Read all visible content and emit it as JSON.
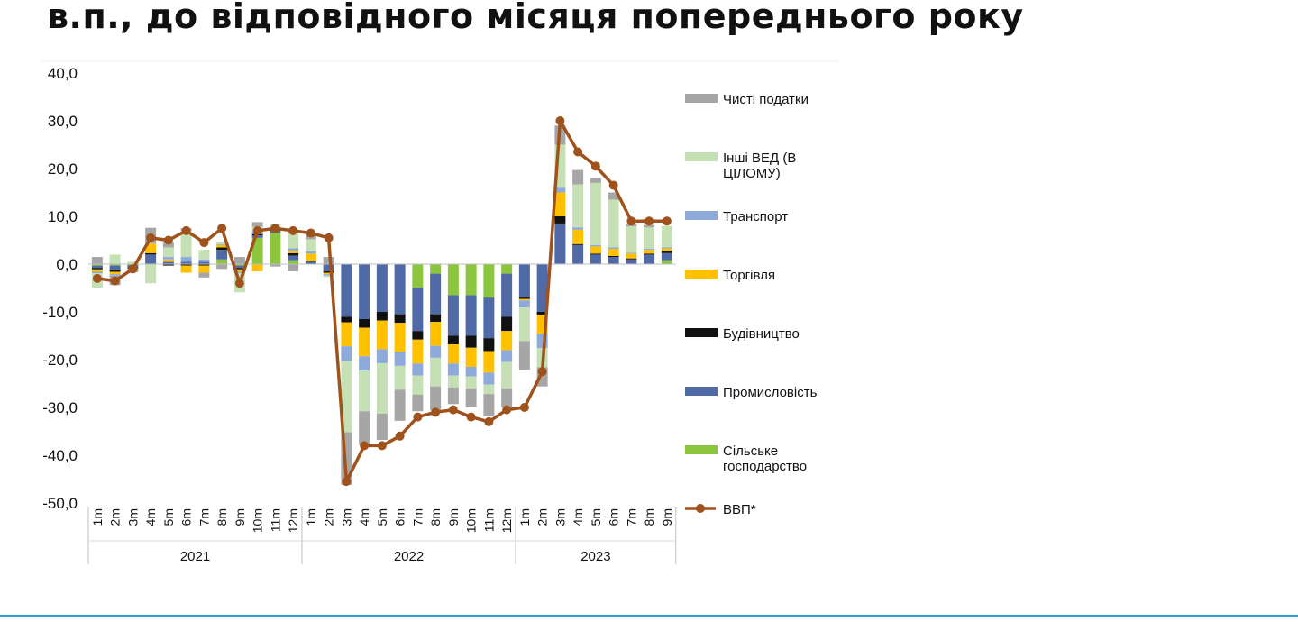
{
  "page": {
    "title_line": "в.п., до відповідного місяця попереднього року"
  },
  "chart_data": {
    "type": "bar",
    "stacked": true,
    "title": "в.п., до відповідного місяця попереднього року",
    "xlabel": "",
    "ylabel": "",
    "ylim": [
      -50,
      40
    ],
    "yticks": [
      "40,0",
      "30,0",
      "20,0",
      "10,0",
      "0,0",
      "-10,0",
      "-20,0",
      "-30,0",
      "-40,0",
      "-50,0"
    ],
    "ytick_values": [
      40,
      30,
      20,
      10,
      0,
      -10,
      -20,
      -30,
      -40,
      -50
    ],
    "grid": false,
    "legend_position": "right",
    "categories": [
      "1m",
      "2m",
      "3m",
      "4m",
      "5m",
      "6m",
      "7m",
      "8m",
      "9m",
      "10m",
      "11m",
      "12m",
      "1m",
      "2m",
      "3m",
      "4m",
      "5m",
      "6m",
      "7m",
      "8m",
      "9m",
      "10m",
      "11m",
      "12m",
      "1m",
      "2m",
      "3m",
      "4m",
      "5m",
      "6m",
      "7m",
      "8m",
      "9m"
    ],
    "year_groups": [
      {
        "label": "2021",
        "start": 0,
        "count": 12
      },
      {
        "label": "2022",
        "start": 12,
        "count": 12
      },
      {
        "label": "2023",
        "start": 24,
        "count": 9
      }
    ],
    "series": [
      {
        "name": "Сільське господарство",
        "color": "#8cc63f",
        "values": [
          -0.3,
          -0.3,
          -0.2,
          0.0,
          0.0,
          0.0,
          0.0,
          1.0,
          -0.3,
          5.5,
          6.5,
          0.8,
          0.0,
          0.0,
          0.0,
          0.0,
          0.0,
          0.0,
          -5.0,
          -2.0,
          -6.5,
          -6.5,
          -7.0,
          -2.0,
          0.0,
          0.0,
          0.0,
          0.0,
          0.0,
          0.0,
          0.0,
          0.0,
          0.8
        ]
      },
      {
        "name": "Промисловість",
        "color": "#4f6aa6",
        "values": [
          -0.5,
          -1.0,
          -0.5,
          2.0,
          0.5,
          0.5,
          0.5,
          2.0,
          -0.5,
          0.5,
          0.5,
          1.0,
          0.5,
          -1.5,
          -11.0,
          -11.5,
          -10.0,
          -10.5,
          -9.0,
          -8.5,
          -8.5,
          -8.5,
          -8.5,
          -9.0,
          -7.0,
          -10.0,
          8.5,
          4.0,
          2.0,
          1.5,
          1.0,
          2.0,
          1.5
        ]
      },
      {
        "name": "Будівництво",
        "color": "#111111",
        "values": [
          -0.3,
          -0.3,
          -0.2,
          0.3,
          -0.3,
          -0.3,
          -0.3,
          0.5,
          -0.3,
          0.3,
          0.3,
          0.5,
          0.2,
          -0.3,
          -1.2,
          -1.8,
          -1.8,
          -1.8,
          -1.8,
          -1.6,
          -1.8,
          -2.5,
          -2.7,
          -3.0,
          -0.3,
          -0.6,
          1.5,
          0.2,
          0.2,
          0.2,
          0.2,
          0.2,
          0.5
        ]
      },
      {
        "name": "Торгівля",
        "color": "#ffc000",
        "values": [
          -0.5,
          -0.5,
          -0.3,
          2.0,
          0.5,
          -1.5,
          -1.5,
          0.5,
          -0.5,
          -1.5,
          0.3,
          0.5,
          1.5,
          -0.3,
          -5.0,
          -6.0,
          -6.0,
          -6.0,
          -5.0,
          -5.0,
          -4.0,
          -4.0,
          -4.5,
          -4.0,
          -0.3,
          -4.0,
          5.0,
          3.0,
          1.5,
          1.5,
          1.0,
          0.8,
          0.5
        ]
      },
      {
        "name": "Транспорт",
        "color": "#8eaadb",
        "values": [
          -0.3,
          -0.3,
          -0.2,
          0.3,
          0.5,
          1.0,
          0.5,
          0.2,
          -0.3,
          0.5,
          0.2,
          0.5,
          0.5,
          -0.3,
          -3.0,
          -3.0,
          -3.0,
          -3.0,
          -2.5,
          -2.5,
          -2.5,
          -2.0,
          -2.5,
          -2.5,
          -1.5,
          -3.0,
          1.0,
          0.5,
          0.3,
          0.3,
          0.2,
          0.2,
          0.2
        ]
      },
      {
        "name": "Інші ВЕД (В ЦІЛОМУ)",
        "color": "#c5e0b4",
        "values": [
          -3.0,
          2.0,
          0.5,
          -4.0,
          2.0,
          5.5,
          2.0,
          0.5,
          -4.0,
          1.0,
          0.5,
          3.5,
          2.5,
          -0.3,
          -15.0,
          -8.5,
          -10.5,
          -5.0,
          -4.0,
          -6.0,
          -2.5,
          -2.5,
          -2.0,
          -5.5,
          -7.0,
          -4.0,
          9.0,
          9.0,
          13.0,
          10.0,
          5.5,
          4.5,
          4.5
        ]
      },
      {
        "name": "Чисті податки",
        "color": "#a6a6a6",
        "values": [
          1.5,
          -2.0,
          -0.3,
          3.0,
          1.0,
          0.5,
          -1.0,
          -1.0,
          1.5,
          1.0,
          -0.5,
          -1.5,
          1.3,
          1.5,
          -11.0,
          -7.0,
          -5.5,
          -6.5,
          -3.5,
          -5.0,
          -3.5,
          -4.0,
          -4.5,
          -4.0,
          -6.0,
          -4.0,
          4.0,
          3.0,
          1.0,
          1.5,
          0.5,
          0.5,
          0.0
        ]
      }
    ],
    "line": {
      "name": "ВВП*",
      "color": "#a0521c",
      "values": [
        -3.0,
        -3.5,
        -1.0,
        5.5,
        5.0,
        7.0,
        4.5,
        7.5,
        -4.0,
        7.0,
        7.5,
        7.0,
        6.5,
        5.5,
        -45.5,
        -38.0,
        -38.0,
        -36.0,
        -32.0,
        -31.0,
        -30.5,
        -32.0,
        -33.0,
        -30.5,
        -30.0,
        -22.5,
        30.0,
        23.5,
        20.5,
        16.5,
        9.0,
        9.0,
        9.0
      ]
    },
    "legend_order": [
      "Чисті податки",
      "Інші ВЕД (В ЦІЛОМУ)",
      "Транспорт",
      "Торгівля",
      "Будівництво",
      "Промисловість",
      "Сільське господарство",
      "ВВП*"
    ],
    "legend_labels": [
      {
        "name": "Чисті податки",
        "lines": [
          "Чисті податки"
        ]
      },
      {
        "name": "Інші ВЕД (В ЦІЛОМУ)",
        "lines": [
          "Інші ВЕД (В",
          "ЦІЛОМУ)"
        ]
      },
      {
        "name": "Транспорт",
        "lines": [
          "Транспорт"
        ]
      },
      {
        "name": "Торгівля",
        "lines": [
          "Торгівля"
        ]
      },
      {
        "name": "Будівництво",
        "lines": [
          "Будівництво"
        ]
      },
      {
        "name": "Промисловість",
        "lines": [
          "Промисловість"
        ]
      },
      {
        "name": "Сільське господарство",
        "lines": [
          "Сільське",
          "господарство"
        ]
      },
      {
        "name": "ВВП*",
        "lines": [
          "ВВП*"
        ]
      }
    ]
  }
}
